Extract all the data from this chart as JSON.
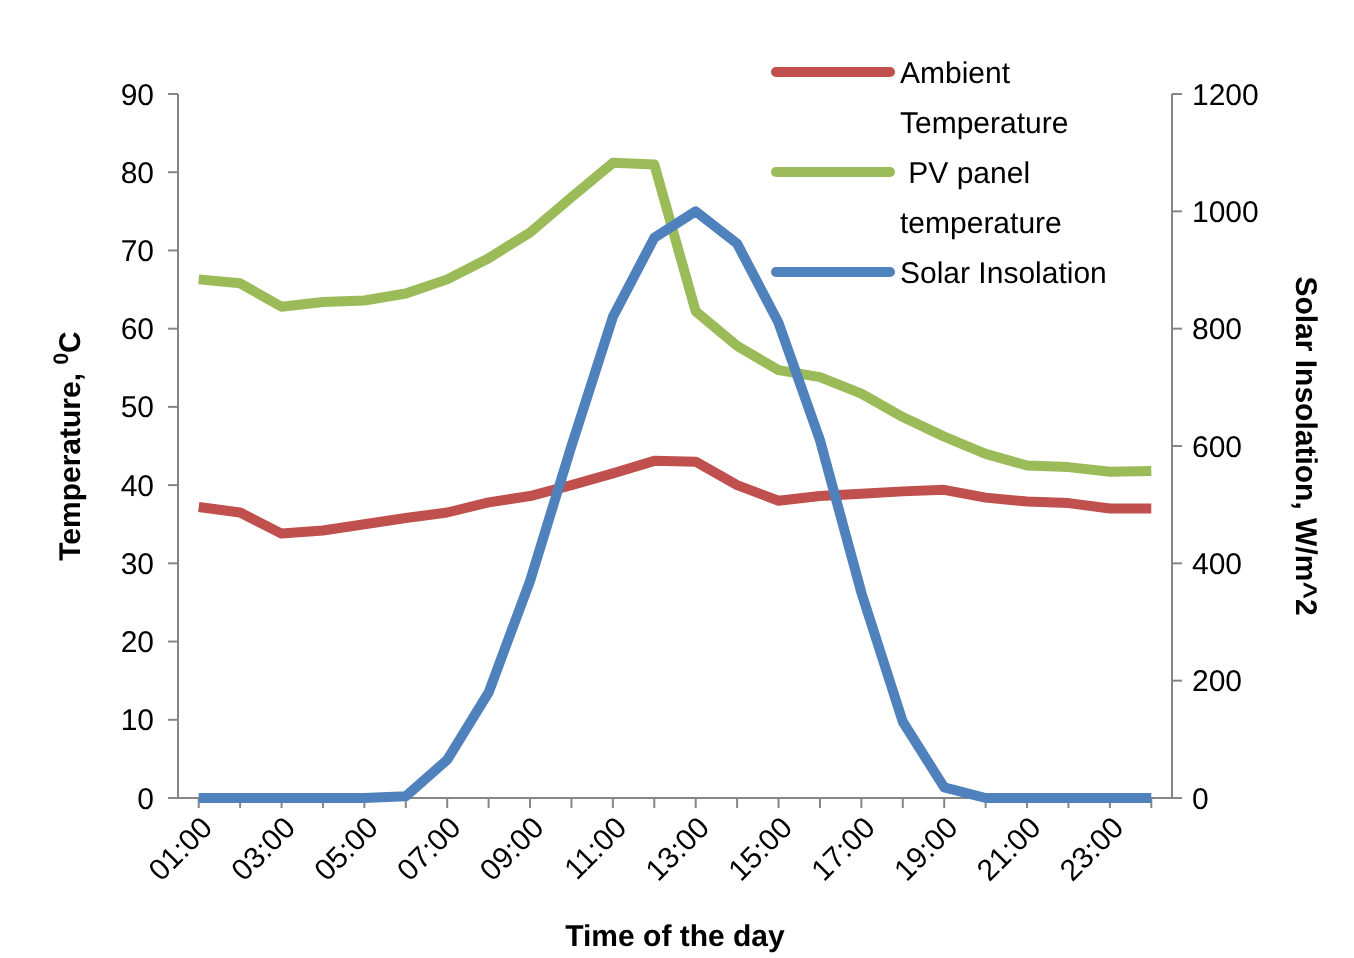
{
  "chart_data": {
    "type": "line",
    "xlabel": "Time of the day",
    "ylabel": "Temperature, $^{0}$C",
    "y2label": "Solar Insolation, W/m^2",
    "categories": [
      "01:00",
      null,
      "03:00",
      null,
      "05:00",
      null,
      "07:00",
      null,
      "09:00",
      null,
      "11:00",
      null,
      "13:00",
      null,
      "15:00",
      null,
      "17:00",
      null,
      "19:00",
      null,
      "21:00",
      null,
      "23:00",
      null
    ],
    "series": [
      {
        "name": "Ambient Temperature",
        "color": "#c0504d",
        "values": [
          37.2,
          36.5,
          33.8,
          34.2,
          35,
          35.8,
          36.5,
          37.8,
          38.6,
          40,
          41.5,
          43.1,
          43,
          40,
          38,
          38.6,
          38.9,
          39.2,
          39.4,
          38.4,
          37.9,
          37.7,
          37,
          37
        ]
      },
      {
        "name": " PV panel temperature",
        "color": "#9bbb59",
        "values": [
          66.3,
          65.8,
          62.8,
          63.4,
          63.6,
          64.5,
          66.3,
          69,
          72.3,
          76.8,
          81.2,
          81,
          62.2,
          57.8,
          54.7,
          53.8,
          51.7,
          48.7,
          46.2,
          44,
          42.5,
          42.3,
          41.7,
          41.8
        ]
      },
      {
        "name": "Solar Insolation",
        "color": "#4f81bd",
        "axis": "y2",
        "values": [
          0,
          0,
          0,
          0,
          0,
          3,
          65,
          180,
          370,
          600,
          820,
          955,
          1000,
          945,
          810,
          610,
          350,
          130,
          18,
          0,
          0,
          0,
          0,
          0
        ]
      }
    ],
    "ylim": [
      0,
      90
    ],
    "yticks": [
      0,
      10,
      20,
      30,
      40,
      50,
      60,
      70,
      80,
      90
    ],
    "y2lim": [
      0,
      1200
    ],
    "y2ticks": [
      0,
      200,
      400,
      600,
      800,
      1000,
      1200
    ],
    "legend": "top right",
    "grid": false,
    "marker": "none",
    "line_style": "solid"
  }
}
